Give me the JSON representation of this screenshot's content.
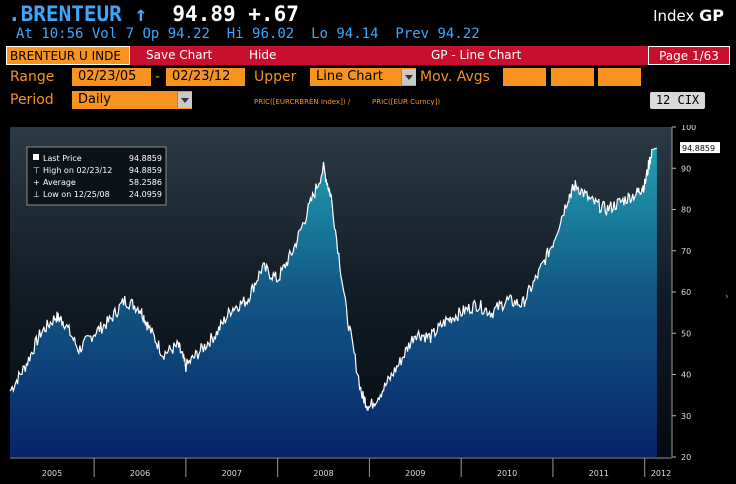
{
  "ticker": {
    "name": ".BRENTEUR",
    "arrow": "↑",
    "price": "94.89",
    "change": "+.67",
    "index_label": "Index",
    "function_code": "GP"
  },
  "stats": {
    "at": "At 10:56",
    "vol": "Vol 7",
    "op": "Op 94.22",
    "hi": "Hi 96.02",
    "lo": "Lo 94.14",
    "prev": "Prev 94.22"
  },
  "toolbar": {
    "ticker_field": "BRENTEUR U INDE",
    "save_chart": "Save Chart",
    "hide": "Hide",
    "title": "GP - Line Chart",
    "page": "Page 1/63"
  },
  "controls": {
    "range_label": "Range",
    "start_date": "02/23/05",
    "dash": "-",
    "end_date": "02/23/12",
    "upper_label": "Upper",
    "chart_type": "Line Chart",
    "mov_avgs_label": "Mov. Avgs",
    "period_label": "Period",
    "period_value": "Daily",
    "formula1": "PRIC([EURCRBREN Index]) /",
    "formula2": "PRIC([EUR Curncy])",
    "cix_button": "12 CIX"
  },
  "legend": {
    "last_price": {
      "label": "Last Price",
      "value": "94.8859"
    },
    "high": {
      "label": "High on 02/23/12",
      "value": "94.8859"
    },
    "average": {
      "label": "Average",
      "value": "58.2586"
    },
    "low": {
      "label": "Low on 12/25/08",
      "value": "24.0959"
    }
  },
  "colors": {
    "accent_orange": "#f7931e",
    "bar_red": "#c8102e",
    "ticker_blue": "#3aa8ff",
    "plot_bg": "#1a2a3a",
    "fill_top": "#1d8a9e",
    "fill_bottom": "#0a2a6a"
  },
  "chart_data": {
    "type": "area",
    "title": "",
    "xlabel": "",
    "ylabel": "",
    "ylim": [
      20,
      100
    ],
    "yticks": [
      20,
      30,
      40,
      50,
      60,
      70,
      80,
      90,
      100
    ],
    "xticks": [
      "2005",
      "2006",
      "2007",
      "2008",
      "2009",
      "2010",
      "2011",
      "2012"
    ],
    "last_value_label": "94.8859",
    "grid": false,
    "legend_position": "top-left",
    "series": [
      {
        "x": [
          "2005-02",
          "2005-04",
          "2005-06",
          "2005-08",
          "2005-09",
          "2005-11",
          "2006-01",
          "2006-03",
          "2006-05",
          "2006-07",
          "2006-08",
          "2006-10",
          "2006-12",
          "2007-01",
          "2007-03",
          "2007-05",
          "2007-07",
          "2007-09",
          "2007-11",
          "2008-01",
          "2008-03",
          "2008-05",
          "2008-07",
          "2008-08",
          "2008-10",
          "2008-12",
          "2009-01",
          "2009-03",
          "2009-05",
          "2009-07",
          "2009-09",
          "2009-11",
          "2010-01",
          "2010-03",
          "2010-05",
          "2010-07",
          "2010-09",
          "2010-11",
          "2011-01",
          "2011-03",
          "2011-04",
          "2011-06",
          "2011-08",
          "2011-10",
          "2011-12",
          "2012-01",
          "2012-02"
        ],
        "y": [
          36,
          42,
          50,
          54,
          53,
          46,
          50,
          53,
          58,
          56,
          52,
          45,
          47,
          42,
          46,
          50,
          56,
          58,
          66,
          63,
          70,
          80,
          90,
          83,
          55,
          35,
          32,
          37,
          43,
          50,
          49,
          53,
          55,
          57,
          55,
          58,
          57,
          64,
          72,
          83,
          86,
          82,
          80,
          82,
          84,
          86,
          94.89
        ]
      }
    ]
  }
}
